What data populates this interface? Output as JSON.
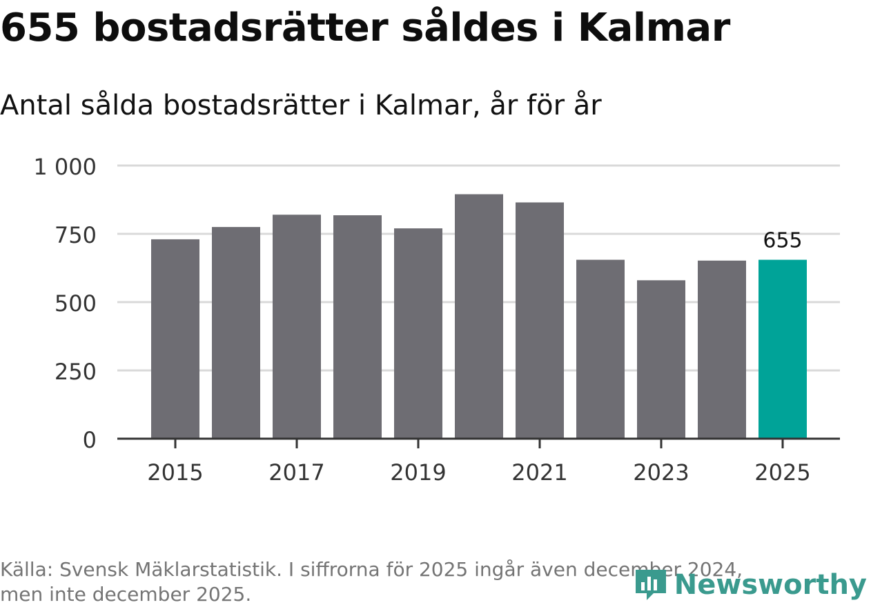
{
  "header": {
    "title": "655 bostadsrätter såldes i Kalmar",
    "subtitle": "Antal sålda bostadsrätter i Kalmar, år för år"
  },
  "footer": {
    "source_line1": "Källa: Svensk Mäklarstatistik. I siffrorna för 2025 ingår även december 2024,",
    "source_line2": "men inte december 2025.",
    "brand": "Newsworthy"
  },
  "colors": {
    "bar": "#6e6d73",
    "highlight": "#00a398",
    "grid": "#d9d9d9",
    "axis": "#333333",
    "brand": "#3a9a8e"
  },
  "chart_data": {
    "type": "bar",
    "categories": [
      "2015",
      "2016",
      "2017",
      "2018",
      "2019",
      "2020",
      "2021",
      "2022",
      "2023",
      "2024",
      "2025"
    ],
    "values": [
      730,
      775,
      820,
      818,
      770,
      895,
      865,
      655,
      580,
      652,
      655
    ],
    "highlight_index": 10,
    "data_label": "655",
    "ylim": [
      0,
      1000
    ],
    "yticks": [
      0,
      250,
      500,
      750,
      1000
    ],
    "ytick_labels": [
      "0",
      "250",
      "500",
      "750",
      "1 000"
    ],
    "xtick_labels": [
      "2015",
      "2017",
      "2019",
      "2021",
      "2023",
      "2025"
    ],
    "title": "655 bostadsrätter såldes i Kalmar",
    "xlabel": "",
    "ylabel": "",
    "grid": true
  }
}
